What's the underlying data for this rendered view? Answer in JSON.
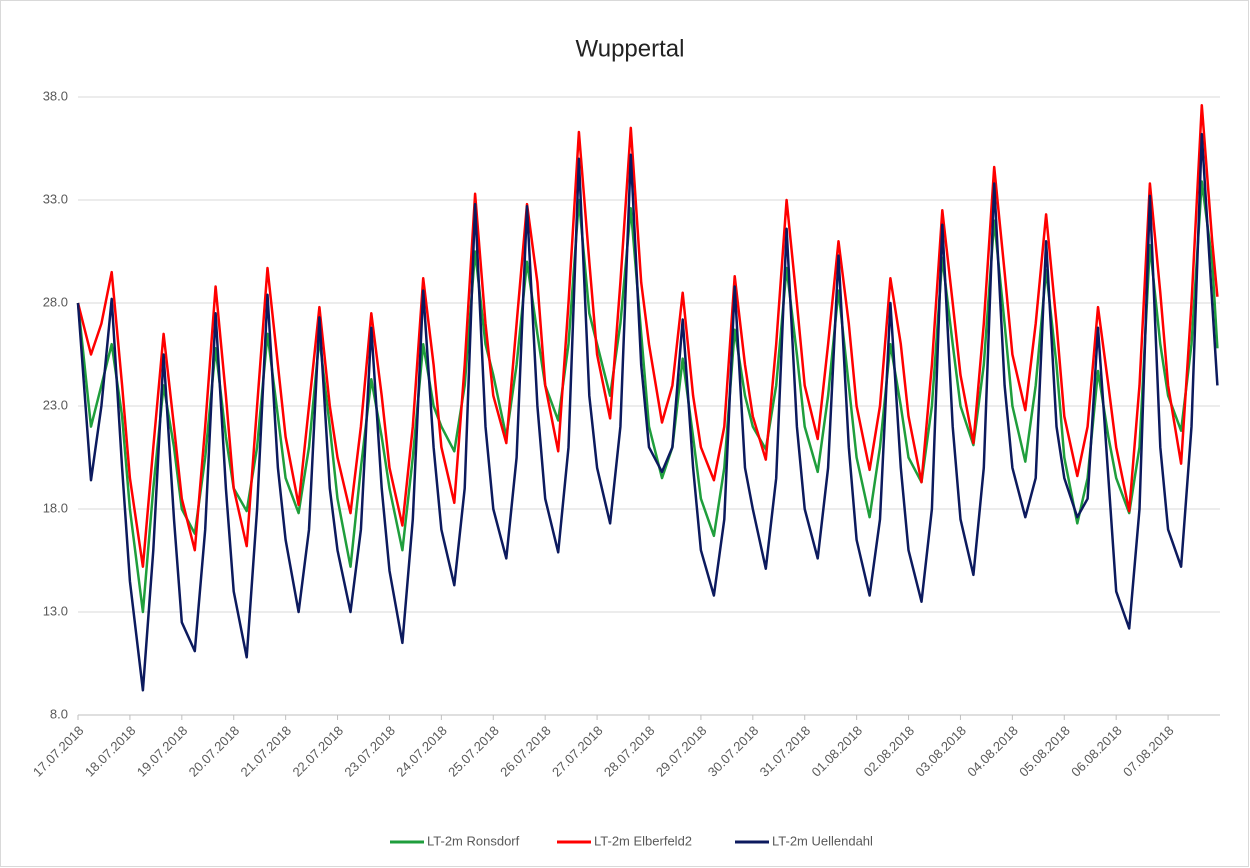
{
  "chart_data": {
    "type": "line",
    "title": "Wuppertal",
    "xlim": [
      0,
      22
    ],
    "xticks": [
      {
        "value": 0,
        "label": "17.07.2018"
      },
      {
        "value": 1,
        "label": "18.07.2018"
      },
      {
        "value": 2,
        "label": "19.07.2018"
      },
      {
        "value": 3,
        "label": "20.07.2018"
      },
      {
        "value": 4,
        "label": "21.07.2018"
      },
      {
        "value": 5,
        "label": "22.07.2018"
      },
      {
        "value": 6,
        "label": "23.07.2018"
      },
      {
        "value": 7,
        "label": "24.07.2018"
      },
      {
        "value": 8,
        "label": "25.07.2018"
      },
      {
        "value": 9,
        "label": "26.07.2018"
      },
      {
        "value": 10,
        "label": "27.07.2018"
      },
      {
        "value": 11,
        "label": "28.07.2018"
      },
      {
        "value": 12,
        "label": "29.07.2018"
      },
      {
        "value": 13,
        "label": "30.07.2018"
      },
      {
        "value": 14,
        "label": "31.07.2018"
      },
      {
        "value": 15,
        "label": "01.08.2018"
      },
      {
        "value": 16,
        "label": "02.08.2018"
      },
      {
        "value": 17,
        "label": "03.08.2018"
      },
      {
        "value": 18,
        "label": "04.08.2018"
      },
      {
        "value": 19,
        "label": "05.08.2018"
      },
      {
        "value": 20,
        "label": "06.08.2018"
      },
      {
        "value": 21,
        "label": "07.08.2018"
      }
    ],
    "ylim": [
      8,
      38
    ],
    "yticks": [
      {
        "value": 8,
        "label": "8.0"
      },
      {
        "value": 13,
        "label": "13.0"
      },
      {
        "value": 18,
        "label": "18.0"
      },
      {
        "value": 23,
        "label": "23.0"
      },
      {
        "value": 28,
        "label": "28.0"
      },
      {
        "value": 33,
        "label": "33.0"
      },
      {
        "value": 38,
        "label": "38.0"
      }
    ],
    "grid": true,
    "legend": "bottom",
    "x": [
      0,
      0.25,
      0.45,
      0.65,
      0.85,
      1,
      1.25,
      1.45,
      1.65,
      1.85,
      2,
      2.25,
      2.45,
      2.65,
      2.85,
      3,
      3.25,
      3.45,
      3.65,
      3.85,
      4,
      4.25,
      4.45,
      4.65,
      4.85,
      5,
      5.25,
      5.45,
      5.65,
      5.85,
      6,
      6.25,
      6.45,
      6.65,
      6.85,
      7,
      7.25,
      7.45,
      7.65,
      7.85,
      8,
      8.25,
      8.45,
      8.65,
      8.85,
      9,
      9.25,
      9.45,
      9.65,
      9.85,
      10,
      10.25,
      10.45,
      10.65,
      10.85,
      11,
      11.25,
      11.45,
      11.65,
      11.85,
      12,
      12.25,
      12.45,
      12.65,
      12.85,
      13,
      13.25,
      13.45,
      13.65,
      13.85,
      14,
      14.25,
      14.45,
      14.65,
      14.85,
      15,
      15.25,
      15.45,
      15.65,
      15.85,
      16,
      16.25,
      16.45,
      16.65,
      16.85,
      17,
      17.25,
      17.45,
      17.65,
      17.85,
      18,
      18.25,
      18.45,
      18.65,
      18.85,
      19,
      19.25,
      19.45,
      19.65,
      19.85,
      20,
      20.25,
      20.45,
      20.65,
      20.85,
      21,
      21.25,
      21.45,
      21.65,
      21.85,
      21.95
    ],
    "series": [
      {
        "name": "LT-2m Ronsdorf",
        "color": "#1f9e3c",
        "values": [
          28,
          22,
          24,
          26,
          22.5,
          18,
          13,
          19,
          24,
          21,
          18,
          16.8,
          20.5,
          25.8,
          21.5,
          19,
          17.9,
          21,
          26.5,
          22.5,
          19.5,
          17.8,
          21,
          26.3,
          22,
          18.5,
          15.2,
          20,
          24.3,
          21.5,
          19,
          16,
          20.5,
          26,
          23,
          22,
          20.8,
          24,
          30.5,
          26,
          24.5,
          21.5,
          25,
          30,
          26.5,
          24,
          22.3,
          26,
          33,
          27.5,
          26,
          23.5,
          27,
          32.6,
          26.5,
          22,
          19.5,
          21,
          25.3,
          21.5,
          18.5,
          16.7,
          20,
          26.7,
          23.5,
          22,
          20.9,
          24,
          29.7,
          25.5,
          22,
          19.8,
          23.5,
          28.6,
          24,
          20.5,
          17.6,
          21,
          26,
          23,
          20.5,
          19.3,
          23,
          30.2,
          26,
          23,
          21.1,
          25,
          32,
          27,
          23,
          20.3,
          24,
          29.6,
          25,
          20.5,
          17.3,
          19.5,
          24.7,
          21.5,
          19.5,
          17.8,
          21,
          30.8,
          26,
          23.5,
          21.8,
          26,
          33.9,
          30,
          25.8
        ]
      },
      {
        "name": "LT-2m Elberfeld2",
        "color": "#ff0000",
        "values": [
          28,
          25.5,
          27,
          29.5,
          24,
          19.5,
          15.2,
          21,
          26.5,
          22,
          18.5,
          16,
          22,
          28.8,
          23.5,
          19,
          16.2,
          23,
          29.7,
          25,
          21.5,
          18.2,
          23,
          27.8,
          23,
          20.5,
          17.8,
          22,
          27.5,
          23.5,
          20,
          17.2,
          22,
          29.2,
          25,
          21,
          18.3,
          25,
          33.3,
          27,
          23.5,
          21.2,
          27,
          32.8,
          29,
          24,
          20.8,
          28,
          36.3,
          30,
          25.5,
          22.4,
          29,
          36.5,
          29,
          26,
          22.2,
          24,
          28.5,
          23.5,
          21,
          19.4,
          22,
          29.3,
          25,
          22.5,
          20.4,
          26,
          33,
          28,
          24,
          21.4,
          26,
          31,
          27,
          23,
          19.9,
          23,
          29.2,
          26,
          22.5,
          19.3,
          25,
          32.5,
          28,
          24.5,
          21.2,
          27,
          34.6,
          29.5,
          25.5,
          22.8,
          27,
          32.3,
          27,
          22.5,
          19.6,
          22,
          27.8,
          24,
          21,
          17.9,
          24,
          33.8,
          28.5,
          24,
          20.2,
          28,
          37.6,
          31,
          28.3
        ]
      },
      {
        "name": "LT-2m Uellendahl",
        "color": "#0c1a5e",
        "values": [
          28,
          19.4,
          23,
          28.2,
          20,
          14.5,
          9.2,
          16,
          25.5,
          17.5,
          12.5,
          11.1,
          17,
          27.5,
          19,
          14,
          10.8,
          18,
          28.4,
          20,
          16.5,
          13,
          17,
          27.3,
          19,
          16,
          13,
          17,
          26.8,
          19,
          15,
          11.5,
          17.5,
          28.6,
          21,
          17,
          14.3,
          19,
          32.8,
          22,
          18,
          15.6,
          20.5,
          32.7,
          23,
          18.5,
          15.9,
          21,
          35,
          23.5,
          20,
          17.3,
          22,
          35.2,
          25,
          21,
          19.8,
          21,
          27.2,
          20,
          16,
          13.8,
          17.5,
          28.8,
          20,
          18,
          15.1,
          19.5,
          31.6,
          22,
          18,
          15.6,
          20,
          30.3,
          21,
          16.5,
          13.8,
          17.5,
          28,
          20,
          16,
          13.5,
          18,
          31.8,
          22,
          17.5,
          14.8,
          20,
          33.8,
          24,
          20,
          17.6,
          19.5,
          31,
          22,
          19.5,
          17.6,
          18.5,
          26.8,
          19.5,
          14,
          12.2,
          18,
          33.2,
          21,
          17,
          15.2,
          22,
          36.2,
          28,
          24
        ]
      }
    ]
  }
}
